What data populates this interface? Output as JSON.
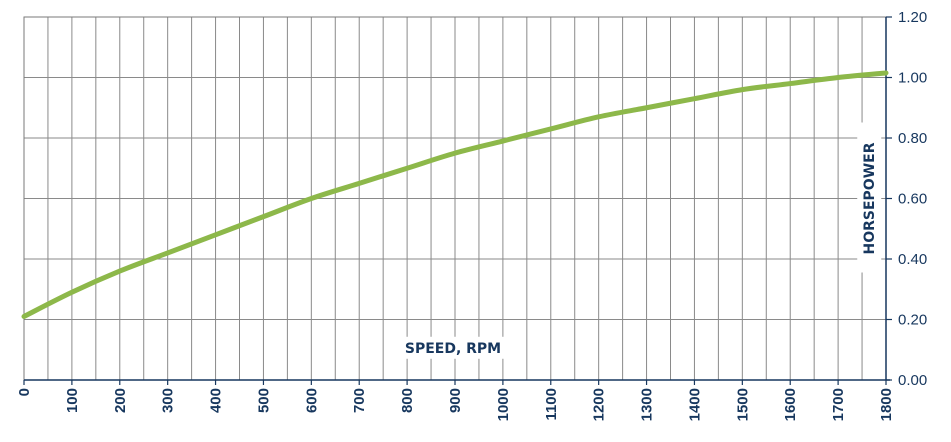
{
  "chart_data": {
    "type": "line",
    "xlabel": "SPEED, RPM",
    "ylabel": "HORSEPOWER",
    "xlim": [
      0,
      1800
    ],
    "ylim": [
      0,
      1.2
    ],
    "x_ticks": [
      "0",
      "100",
      "200",
      "300",
      "400",
      "500",
      "600",
      "700",
      "800",
      "900",
      "1000",
      "1100",
      "1200",
      "1300",
      "1400",
      "1500",
      "1600",
      "1700",
      "1800"
    ],
    "y_ticks": [
      "0.00",
      "0.20",
      "0.40",
      "0.60",
      "0.80",
      "1.00",
      "1.20"
    ],
    "grid": true,
    "y_axis_position": "right",
    "series": [
      {
        "color": "#8db84a",
        "x": [
          0,
          100,
          200,
          300,
          400,
          500,
          600,
          700,
          800,
          900,
          1000,
          1100,
          1200,
          1300,
          1400,
          1500,
          1600,
          1700,
          1800
        ],
        "y": [
          0.21,
          0.29,
          0.36,
          0.42,
          0.48,
          0.54,
          0.6,
          0.65,
          0.7,
          0.75,
          0.79,
          0.83,
          0.87,
          0.9,
          0.93,
          0.96,
          0.98,
          1.0,
          1.015
        ]
      }
    ]
  }
}
